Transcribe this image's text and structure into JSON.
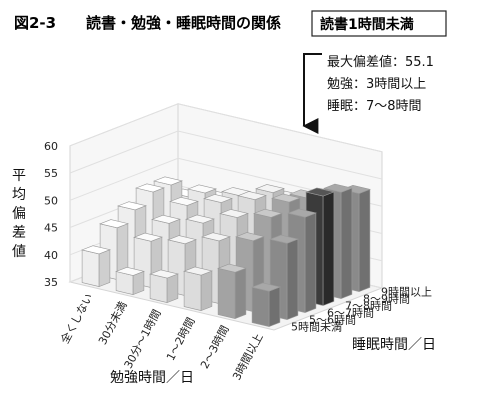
{
  "figure": {
    "label": "図2-3",
    "title": "読書・勉強・睡眠時間の関係",
    "tag": "読書1時間未満"
  },
  "annotation": {
    "lines": [
      "最大偏差値：55.1",
      "勉強：3時間以上",
      "睡眠：7〜8時間"
    ]
  },
  "chart_data": {
    "type": "bar3d",
    "title": "読書・勉強・睡眠時間の関係",
    "subtitle": "読書1時間未満",
    "zlabel": "平均偏差値",
    "xlabel": "勉強時間／日",
    "ylabel": "睡眠時間／日",
    "zlim": [
      35,
      60
    ],
    "zticks": [
      35,
      40,
      45,
      50,
      55,
      60
    ],
    "study_categories": [
      "全くしない",
      "30分未満",
      "30分〜1時間",
      "1〜2時間",
      "2〜3時間",
      "3時間以上"
    ],
    "sleep_categories": [
      "5時間未満",
      "5〜6時間",
      "6〜7時間",
      "7〜8時間",
      "8〜9時間",
      "9時間以上"
    ],
    "values": [
      [
        41.0,
        44.5,
        46.5,
        48.5,
        48.5,
        45.0
      ],
      [
        38.5,
        43.5,
        45.5,
        47.5,
        48.5,
        46.0
      ],
      [
        39.5,
        44.5,
        47.0,
        49.5,
        49.5,
        47.0
      ],
      [
        41.5,
        46.5,
        49.5,
        51.5,
        51.5,
        49.0
      ],
      [
        43.5,
        48.0,
        51.0,
        52.5,
        52.0,
        51.0
      ],
      [
        41.5,
        49.0,
        52.5,
        55.1,
        54.5,
        53.0
      ]
    ],
    "max": {
      "value": 55.1,
      "study": "3時間以上",
      "sleep": "7〜8時間"
    }
  }
}
